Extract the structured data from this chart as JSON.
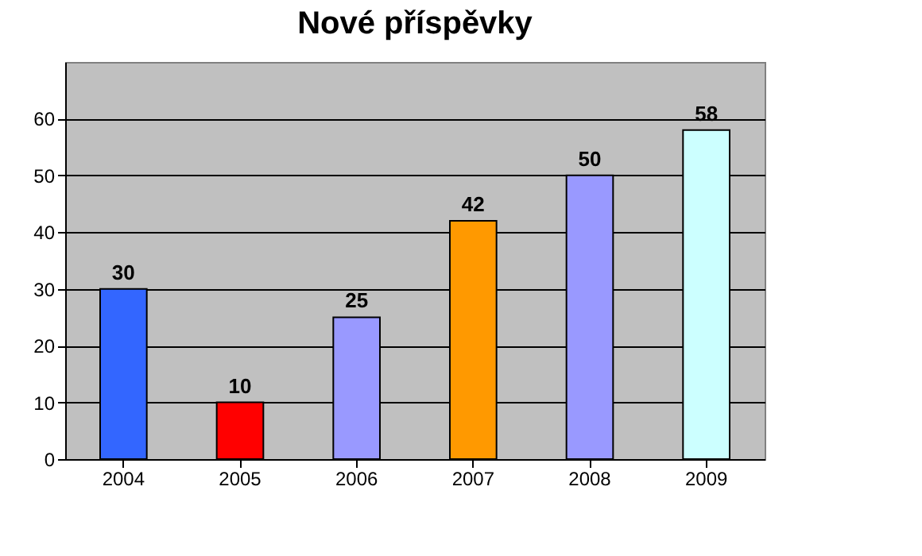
{
  "chart_data": {
    "type": "bar",
    "title": "Nové příspěvky",
    "categories": [
      "2004",
      "2005",
      "2006",
      "2007",
      "2008",
      "2009"
    ],
    "values": [
      30,
      10,
      25,
      42,
      50,
      58
    ],
    "colors": [
      "#3366ff",
      "#ff0000",
      "#9999ff",
      "#ff9900",
      "#9999ff",
      "#ccffff"
    ],
    "ylim": [
      0,
      70
    ],
    "yticks": [
      0,
      10,
      20,
      30,
      40,
      50,
      60
    ],
    "grid": "y",
    "data_labels": true
  }
}
